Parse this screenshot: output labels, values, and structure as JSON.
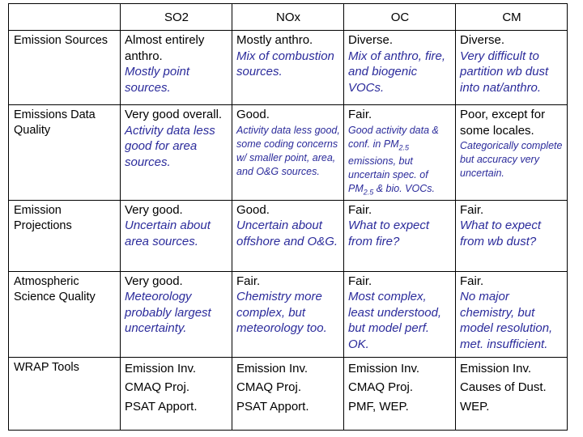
{
  "columns": [
    "SO2",
    "NOx",
    "OC",
    "CM"
  ],
  "rows": [
    {
      "label": "Emission Sources",
      "cells": [
        {
          "plain": "Almost entirely anthro.",
          "note": "Mostly point sources."
        },
        {
          "plain": "Mostly anthro.",
          "note": "Mix of combustion sources."
        },
        {
          "plain": "Diverse.",
          "note": "Mix of anthro, fire, and biogenic VOCs."
        },
        {
          "plain": "Diverse.",
          "note": "Very difficult to partition wb dust into nat/anthro."
        }
      ]
    },
    {
      "label": "Emissions Data Quality",
      "cells": [
        {
          "plain": "Very good overall.",
          "note": "Activity data less good for area sources."
        },
        {
          "plain": "Good.",
          "small": "Activity data less good, some coding concerns w/ smaller point, area, and O&G sources."
        },
        {
          "plain": "Fair.",
          "small_a": "Good activity data & conf. in PM",
          "small_sub1": "2.5",
          "small_b": " emissions, but uncertain spec. of PM",
          "small_sub2": "2.5",
          "small_c": " & bio. VOCs."
        },
        {
          "plain": "Poor, except for some locales.",
          "small": "Categorically complete but accuracy very uncertain."
        }
      ]
    },
    {
      "label": "Emission Projections",
      "cells": [
        {
          "plain": "Very good.",
          "note": "Uncertain about area sources."
        },
        {
          "plain": "Good.",
          "note": "Uncertain about offshore and O&G."
        },
        {
          "plain": "Fair.",
          "note": "What to expect from fire?"
        },
        {
          "plain": "Fair.",
          "note": "What to expect from wb dust?"
        }
      ]
    },
    {
      "label": "Atmospheric Science Quality",
      "cells": [
        {
          "plain": "Very good.",
          "note": "Meteorology probably largest uncertainty."
        },
        {
          "plain": "Fair.",
          "note": "Chemistry more complex, but meteorology too."
        },
        {
          "plain": "Fair.",
          "note": "Most complex, least understood, but model perf. OK."
        },
        {
          "plain": "Fair.",
          "note": "No major chemistry, but model resolution, met. insufficient."
        }
      ]
    },
    {
      "label": "WRAP Tools",
      "cells": [
        {
          "lines": [
            "Emission Inv.",
            "CMAQ Proj.",
            "PSAT Apport."
          ]
        },
        {
          "lines": [
            "Emission Inv.",
            "CMAQ Proj.",
            "PSAT Apport."
          ]
        },
        {
          "lines": [
            "Emission Inv.",
            "CMAQ Proj.",
            "PMF, WEP."
          ]
        },
        {
          "lines": [
            "Emission Inv.",
            "Causes of Dust.",
            "WEP."
          ]
        }
      ]
    }
  ]
}
